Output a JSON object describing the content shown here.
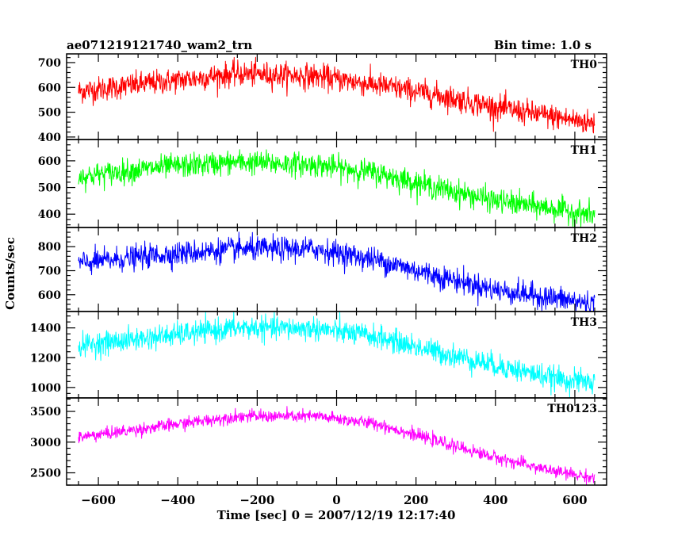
{
  "chart_data": {
    "type": "line",
    "title": "ae071219121740_wam2_trn",
    "bin_time": "Bin time: 1.0 s",
    "xlabel": "Time [sec] 0 = 2007/12/19 12:17:40",
    "ylabel": "Counts/sec",
    "xlim": [
      -680,
      680
    ],
    "x_ticks": [
      -600,
      -400,
      -200,
      0,
      200,
      400,
      600
    ],
    "x_tick_labels": [
      "−600",
      "−400",
      "−200",
      "0",
      "200",
      "400",
      "600"
    ],
    "x_range": [
      -650,
      650
    ],
    "panels": [
      {
        "name": "TH0",
        "color": "#ff0000",
        "ylim": [
          390,
          735
        ],
        "y_ticks": [
          400,
          500,
          600,
          700
        ],
        "y_tick_labels": [
          "400",
          "500",
          "600",
          "700"
        ],
        "trend": [
          [
            -650,
            585
          ],
          [
            -450,
            620
          ],
          [
            -250,
            655
          ],
          [
            -50,
            645
          ],
          [
            100,
            610
          ],
          [
            250,
            570
          ],
          [
            400,
            520
          ],
          [
            550,
            480
          ],
          [
            650,
            455
          ]
        ],
        "noise": 45
      },
      {
        "name": "TH1",
        "color": "#00ff00",
        "ylim": [
          350,
          680
        ],
        "y_ticks": [
          400,
          500,
          600
        ],
        "y_tick_labels": [
          "400",
          "500",
          "600"
        ],
        "trend": [
          [
            -650,
            540
          ],
          [
            -450,
            575
          ],
          [
            -250,
            595
          ],
          [
            -50,
            585
          ],
          [
            100,
            555
          ],
          [
            250,
            500
          ],
          [
            400,
            450
          ],
          [
            550,
            420
          ],
          [
            650,
            395
          ]
        ],
        "noise": 40
      },
      {
        "name": "TH2",
        "color": "#0000ff",
        "ylim": [
          530,
          880
        ],
        "y_ticks": [
          600,
          700,
          800
        ],
        "y_tick_labels": [
          "600",
          "700",
          "800"
        ],
        "trend": [
          [
            -650,
            730
          ],
          [
            -450,
            765
          ],
          [
            -250,
            790
          ],
          [
            -50,
            790
          ],
          [
            100,
            745
          ],
          [
            250,
            680
          ],
          [
            400,
            620
          ],
          [
            550,
            585
          ],
          [
            650,
            560
          ]
        ],
        "noise": 45
      },
      {
        "name": "TH3",
        "color": "#00ffff",
        "ylim": [
          930,
          1510
        ],
        "y_ticks": [
          1000,
          1200,
          1400
        ],
        "y_tick_labels": [
          "1000",
          "1200",
          "1400"
        ],
        "trend": [
          [
            -650,
            1280
          ],
          [
            -450,
            1340
          ],
          [
            -250,
            1400
          ],
          [
            -50,
            1395
          ],
          [
            100,
            1340
          ],
          [
            250,
            1240
          ],
          [
            400,
            1150
          ],
          [
            550,
            1060
          ],
          [
            650,
            1030
          ]
        ],
        "noise": 70
      },
      {
        "name": "TH0123",
        "color": "#ff00ff",
        "ylim": [
          2300,
          3720
        ],
        "y_ticks": [
          2500,
          3000,
          3500
        ],
        "y_tick_labels": [
          "2500",
          "3000",
          "3500"
        ],
        "trend": [
          [
            -650,
            3080
          ],
          [
            -450,
            3250
          ],
          [
            -250,
            3420
          ],
          [
            -50,
            3420
          ],
          [
            100,
            3300
          ],
          [
            250,
            3020
          ],
          [
            400,
            2750
          ],
          [
            550,
            2520
          ],
          [
            650,
            2420
          ]
        ],
        "noise": 90
      }
    ]
  }
}
